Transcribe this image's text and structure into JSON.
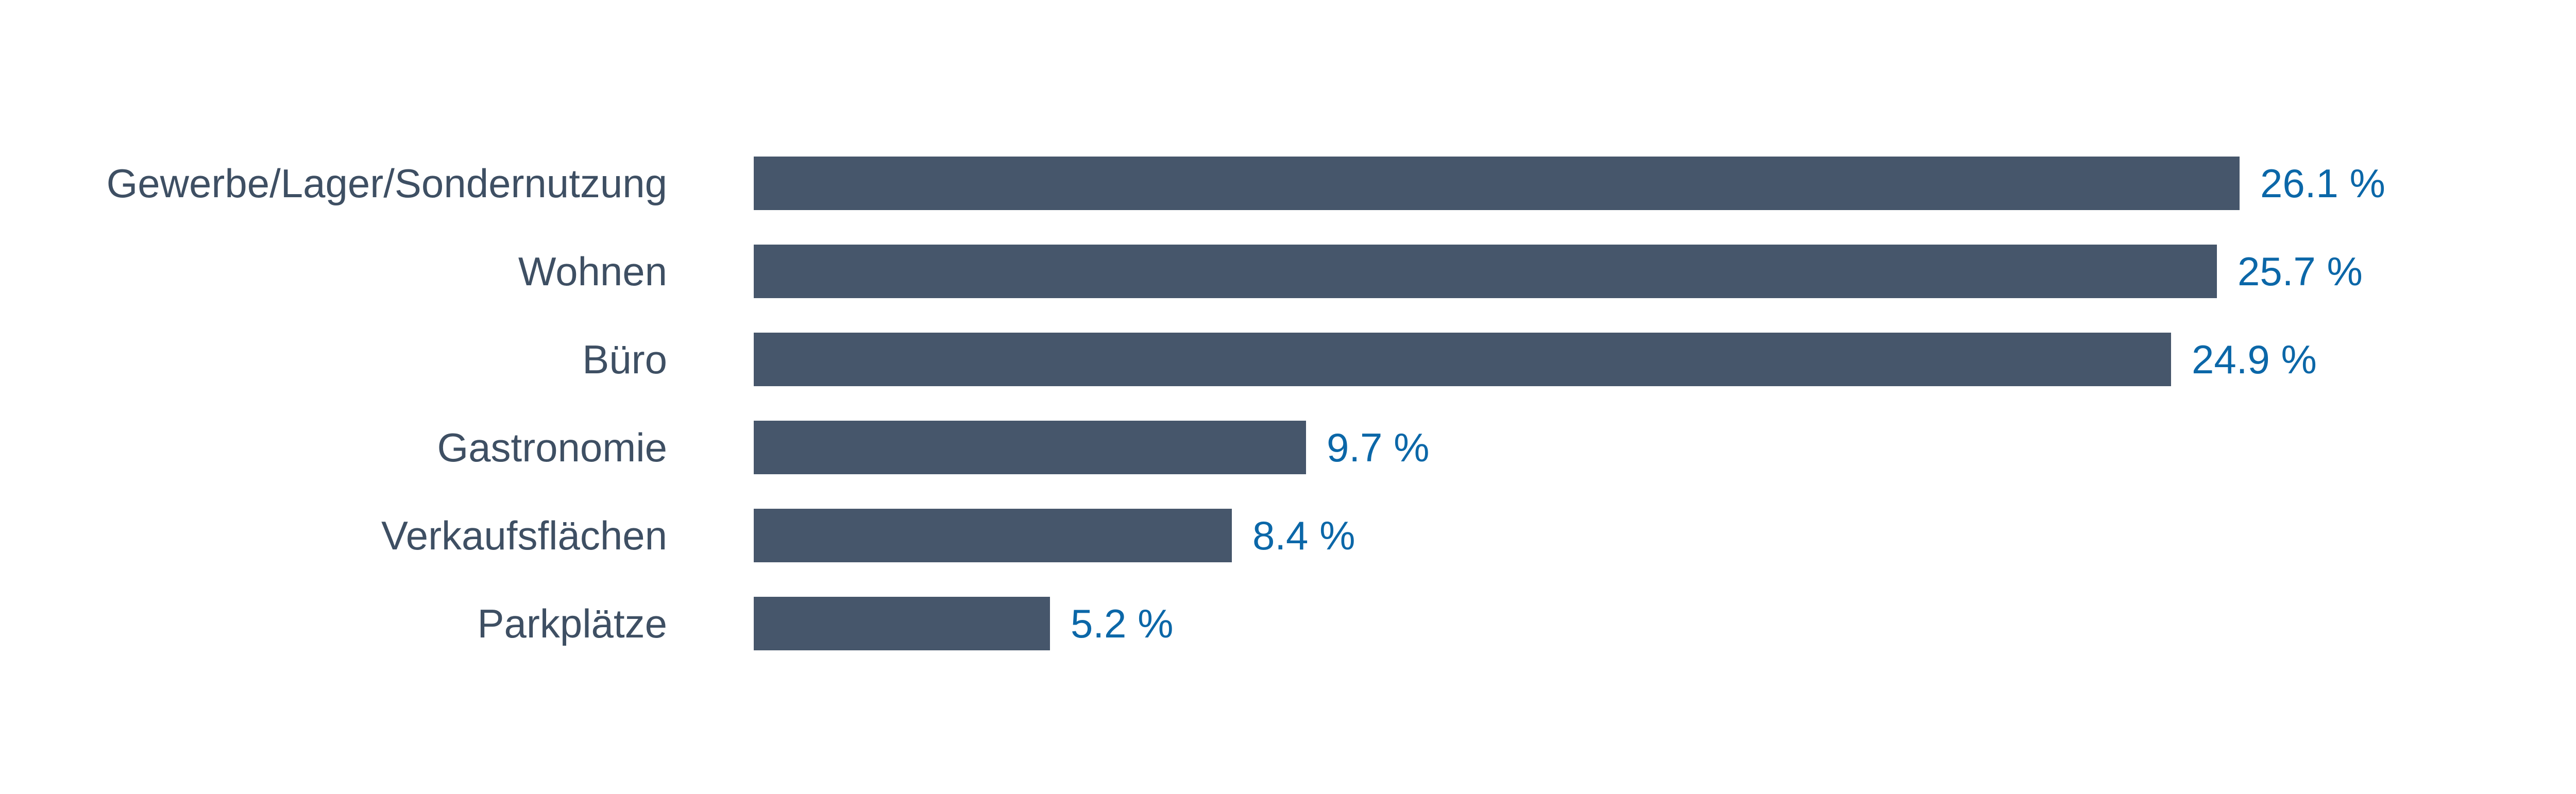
{
  "chart_data": {
    "type": "bar",
    "orientation": "horizontal",
    "title": "",
    "xlabel": "",
    "ylabel": "",
    "grid": false,
    "legend_position": "none",
    "xlim": [
      0,
      30
    ],
    "categories": [
      "Gewerbe/Lager/Sondernutzung",
      "Wohnen",
      "Büro",
      "Gastronomie",
      "Verkaufsflächen",
      "Parkplätze"
    ],
    "values": [
      26.1,
      25.7,
      24.9,
      9.7,
      8.4,
      5.2
    ],
    "value_labels": [
      "26.1 %",
      "25.7 %",
      "24.9 %",
      "9.7 %",
      "8.4 %",
      "5.2 %"
    ],
    "colors": {
      "bar": "#46566B",
      "value_label": "#0B67A8",
      "category_label": "#3E4F63",
      "background": "#FFFFFF"
    }
  }
}
